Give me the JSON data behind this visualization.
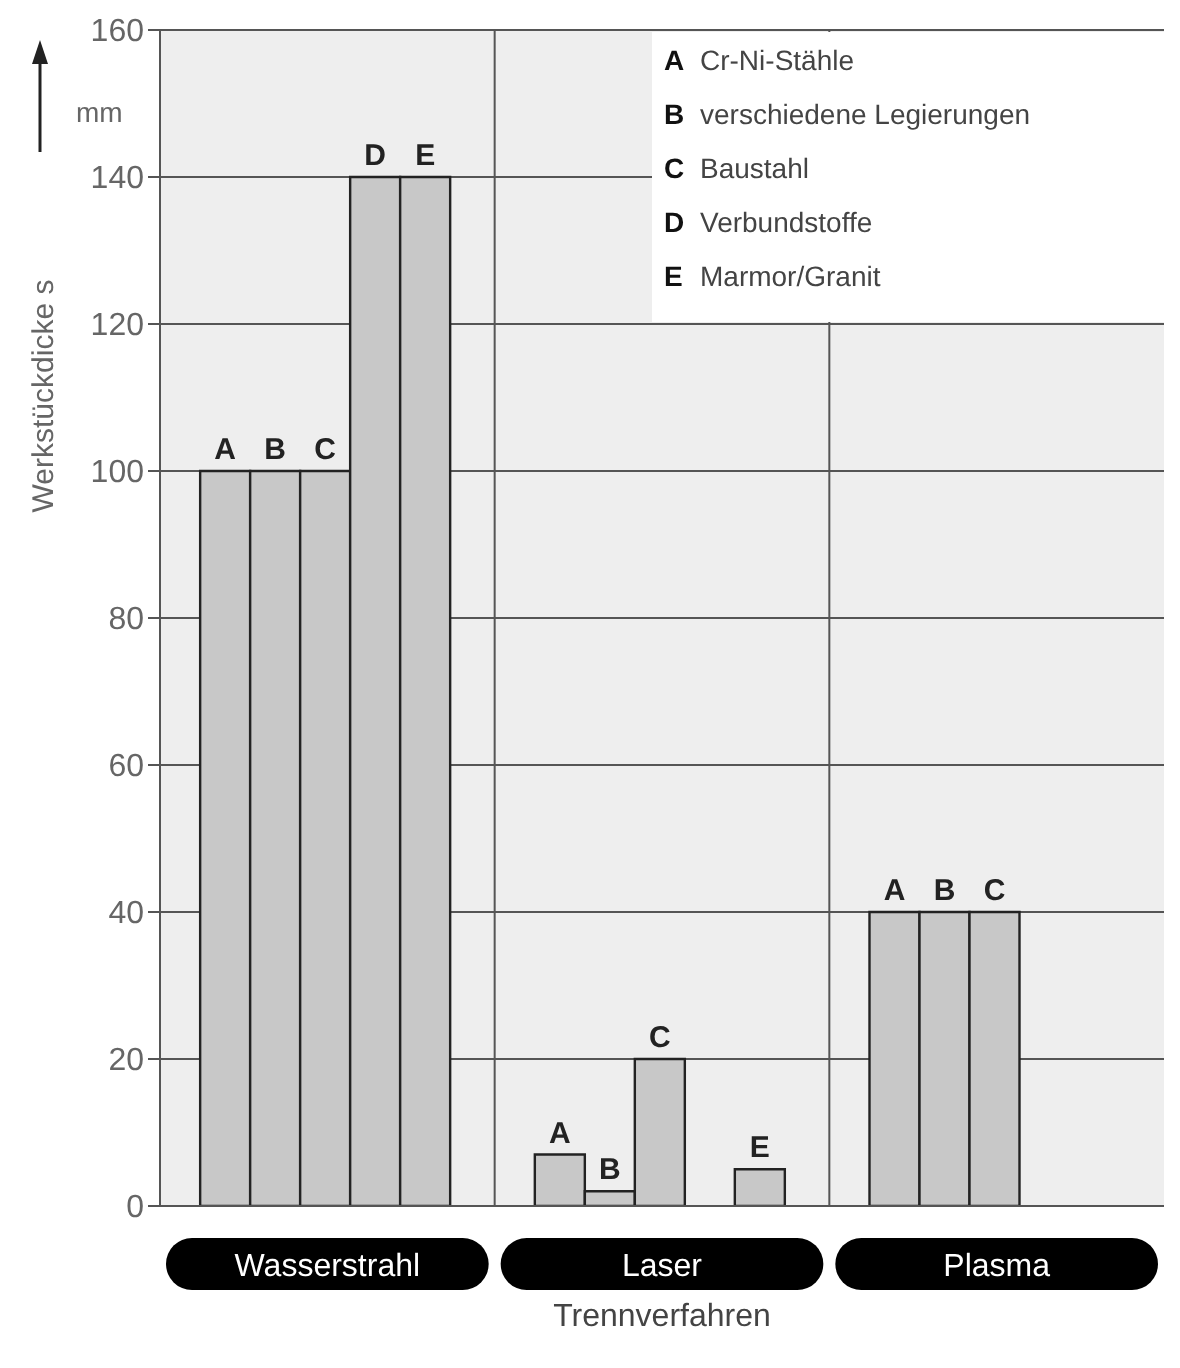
{
  "chart_data": {
    "type": "bar",
    "xlabel": "Trennverfahren",
    "ylabel": "Werkstückdicke s",
    "categories": [
      "Wasserstrahl",
      "Laser",
      "Plasma"
    ],
    "series": [
      {
        "name": "A",
        "color": "#c8c8c8",
        "values": [
          100,
          7,
          40
        ]
      },
      {
        "name": "B",
        "color": "#c8c8c8",
        "values": [
          100,
          2,
          40
        ]
      },
      {
        "name": "C",
        "color": "#c8c8c8",
        "values": [
          100,
          20,
          40
        ]
      },
      {
        "name": "D",
        "color": "#c8c8c8",
        "values": [
          140,
          null,
          null
        ]
      },
      {
        "name": "E",
        "color": "#c8c8c8",
        "values": [
          140,
          5,
          null
        ]
      }
    ],
    "ylim": [
      0,
      160
    ],
    "yticks": [
      0,
      20,
      40,
      60,
      80,
      100,
      120,
      140,
      160
    ],
    "grid": true,
    "legend": false,
    "annotations": [
      "mm",
      "A Cr-Ni-Stähle",
      "B verschiedene Legierungen",
      "C Baustahl",
      "D Verbundstoffe",
      "E Marmor/Granit"
    ]
  }
}
